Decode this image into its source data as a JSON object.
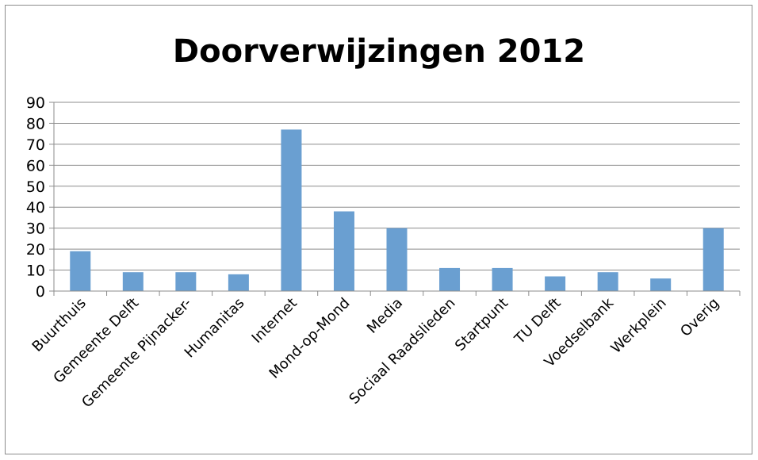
{
  "chart_data": {
    "type": "bar",
    "title": "Doorverwijzingen 2012",
    "xlabel": "",
    "ylabel": "",
    "ylim": [
      0,
      90
    ],
    "yticks": [
      0,
      10,
      20,
      30,
      40,
      50,
      60,
      70,
      80,
      90
    ],
    "grid": true,
    "legend": "none",
    "categories": [
      "Buurthuis",
      "Gemeente Delft",
      "Gemeente Pijnacker-",
      "Humanitas",
      "Internet",
      "Mond-op-Mond",
      "Media",
      "Sociaal Raadslieden",
      "Startpunt",
      "TU Delft",
      "Voedselbank",
      "Werkplein",
      "Overig"
    ],
    "values": [
      19,
      9,
      9,
      8,
      77,
      38,
      30,
      11,
      11,
      7,
      9,
      6,
      30
    ],
    "bar_color": "#6a9fd1"
  }
}
